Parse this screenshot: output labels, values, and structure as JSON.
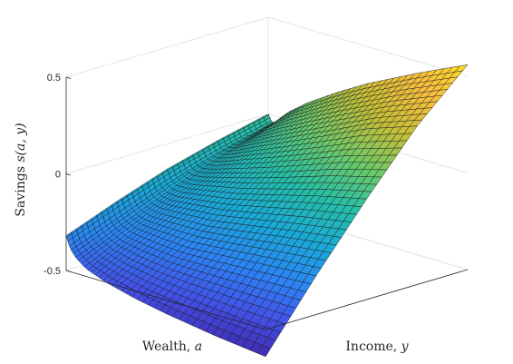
{
  "chart_data": {
    "type": "surface",
    "title": "",
    "xlabel": {
      "text": "Wealth, ",
      "symbol": "a"
    },
    "ylabel": {
      "text": "Income, ",
      "symbol": "y"
    },
    "zlabel": {
      "text": "Savings ",
      "symbol": "s(a, y)"
    },
    "zlim": [
      -0.5,
      0.5
    ],
    "zticks": [
      {
        "value": -0.5,
        "label": "-0.5"
      },
      {
        "value": 0,
        "label": "0"
      },
      {
        "value": 0.5,
        "label": "0.5"
      }
    ],
    "wealth_range": [
      0,
      1
    ],
    "income_range": [
      0,
      1
    ],
    "colormap": [
      "#3e26a8",
      "#4450e8",
      "#2c84f6",
      "#19a9d8",
      "#25bea8",
      "#6cc96a",
      "#c4bf38",
      "#fbbe3e",
      "#f9e225"
    ],
    "grid": true,
    "surface": {
      "wealth": [
        0,
        0.02,
        0.05,
        0.1,
        0.2,
        0.35,
        0.5,
        0.75,
        1.0
      ],
      "income": [
        0,
        0.25,
        0.5,
        0.75,
        1.0
      ],
      "savings": [
        [
          -0.32,
          -0.22,
          -0.13,
          -0.06,
          0.0
        ],
        [
          -0.38,
          -0.28,
          -0.18,
          -0.1,
          -0.04
        ],
        [
          -0.42,
          -0.31,
          -0.2,
          -0.1,
          -0.02
        ],
        [
          -0.46,
          -0.33,
          -0.2,
          -0.08,
          0.04
        ],
        [
          -0.5,
          -0.34,
          -0.18,
          -0.03,
          0.12
        ],
        [
          -0.54,
          -0.35,
          -0.15,
          0.04,
          0.22
        ],
        [
          -0.57,
          -0.34,
          -0.11,
          0.11,
          0.31
        ],
        [
          -0.61,
          -0.32,
          -0.04,
          0.23,
          0.44
        ],
        [
          -0.64,
          -0.3,
          0.02,
          0.32,
          0.56
        ]
      ]
    }
  }
}
